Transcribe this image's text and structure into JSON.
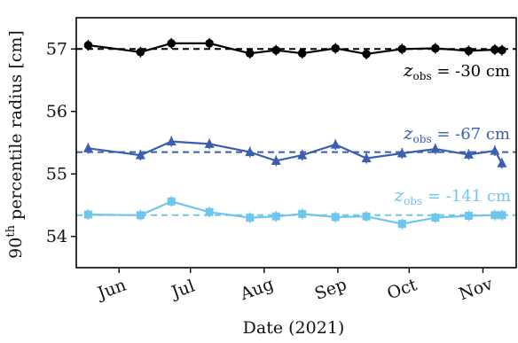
{
  "chart_data": {
    "type": "line",
    "xlabel": "Date (2021)",
    "ylabel_main": "90",
    "ylabel_sup": "th",
    "ylabel_rest": " percentile radius [cm]",
    "ylim": [
      53.5,
      57.5
    ],
    "xlim": [
      134,
      319
    ],
    "yticks": [
      54,
      55,
      56,
      57
    ],
    "xticks": [
      {
        "label": "Jun",
        "day": 152
      },
      {
        "label": "Jul",
        "day": 182
      },
      {
        "label": "Aug",
        "day": 213
      },
      {
        "label": "Sep",
        "day": 244
      },
      {
        "label": "Oct",
        "day": 274
      },
      {
        "label": "Nov",
        "day": 305
      }
    ],
    "grid": false,
    "series": [
      {
        "name": "z_obs = -30 cm",
        "label_prefix": "z",
        "label_sub": "obs",
        "label_suffix": " = -30 cm",
        "color": "#000000",
        "marker": "circle",
        "reference": 57.0,
        "x": [
          139,
          161,
          174,
          190,
          207,
          218,
          229,
          243,
          256,
          271,
          285,
          299,
          310,
          313
        ],
        "y": [
          57.06,
          56.95,
          57.09,
          57.09,
          56.93,
          56.98,
          56.93,
          57.01,
          56.92,
          57.0,
          57.01,
          56.97,
          56.99,
          56.98
        ]
      },
      {
        "name": "z_obs = -67 cm",
        "label_prefix": "z",
        "label_sub": "obs",
        "label_suffix": " = -67 cm",
        "color": "#3a5fae",
        "marker": "triangle",
        "reference": 55.35,
        "x": [
          139,
          161,
          174,
          190,
          207,
          218,
          229,
          243,
          256,
          271,
          285,
          299,
          310,
          313
        ],
        "y": [
          55.41,
          55.3,
          55.52,
          55.48,
          55.35,
          55.21,
          55.3,
          55.47,
          55.25,
          55.33,
          55.4,
          55.31,
          55.37,
          55.17
        ]
      },
      {
        "name": "z_obs = -141 cm",
        "label_prefix": "z",
        "label_sub": "obs",
        "label_suffix": " = -141 cm",
        "color": "#6ec6ee",
        "marker": "square",
        "reference": 54.34,
        "x": [
          139,
          161,
          174,
          190,
          207,
          218,
          229,
          243,
          256,
          271,
          285,
          299,
          310,
          313
        ],
        "y": [
          54.35,
          54.34,
          54.56,
          54.39,
          54.3,
          54.32,
          54.36,
          54.31,
          54.32,
          54.2,
          54.3,
          54.33,
          54.34,
          54.34
        ]
      }
    ]
  }
}
